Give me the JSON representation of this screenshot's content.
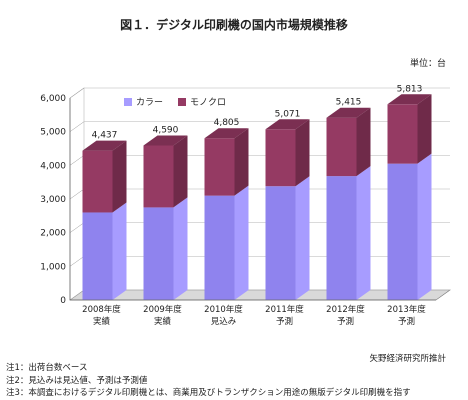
{
  "title": "図１．デジタル印刷機の国内市場規模推移",
  "unit_label": "単位：台",
  "legend": [
    {
      "label": "カラー",
      "color": "#a79cff"
    },
    {
      "label": "モノクロ",
      "color": "#953a63"
    }
  ],
  "source": "矢野経済研究所推計",
  "notes": [
    "注1：出荷台数ベース",
    "注2：見込みは見込値、予測は予測値",
    "注3：本調査におけるデジタル印刷機とは、商業用及びトランザクション用途の無版デジタル印刷機を指す"
  ],
  "chart_data": {
    "type": "bar",
    "stacked": true,
    "categories": [
      [
        "2008年度",
        "実績"
      ],
      [
        "2009年度",
        "実績"
      ],
      [
        "2010年度",
        "見込み"
      ],
      [
        "2011年度",
        "予測"
      ],
      [
        "2012年度",
        "予測"
      ],
      [
        "2013年度",
        "予測"
      ]
    ],
    "series": [
      {
        "name": "カラー",
        "values": [
          2600,
          2750,
          3100,
          3380,
          3680,
          4050
        ]
      },
      {
        "name": "モノクロ",
        "values": [
          1837,
          1840,
          1705,
          1691,
          1735,
          1763
        ]
      }
    ],
    "totals": [
      "4,437",
      "4,590",
      "4,805",
      "5,071",
      "5,415",
      "5,813"
    ],
    "y_ticks": [
      "0",
      "1,000",
      "2,000",
      "3,000",
      "4,000",
      "5,000",
      "6,000"
    ],
    "ylim": [
      0,
      6000
    ],
    "grid": true,
    "legend_position": "top-left",
    "colors": {
      "color_side": "#a79cff",
      "color_front_dark": "#8f83ee",
      "mono": "#953a63",
      "mono_dark": "#6f2a49",
      "floor": "#8a8a8a"
    }
  }
}
